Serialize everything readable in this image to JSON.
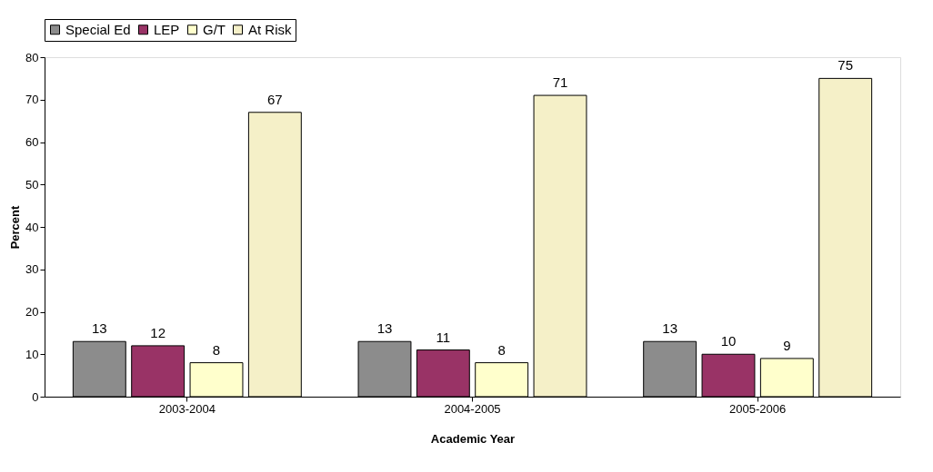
{
  "chart_data": {
    "type": "bar",
    "xlabel": "Academic Year",
    "ylabel": "Percent",
    "categories": [
      "2003-2004",
      "2004-2005",
      "2005-2006"
    ],
    "series": [
      {
        "name": "Special Ed",
        "color": "#8c8c8c",
        "values": [
          13,
          13,
          13
        ]
      },
      {
        "name": "LEP",
        "color": "#993366",
        "values": [
          12,
          11,
          10
        ]
      },
      {
        "name": "G/T",
        "color": "#ffffcc",
        "values": [
          8,
          8,
          9
        ]
      },
      {
        "name": "At Risk",
        "color": "#f5f0c8",
        "values": [
          67,
          71,
          75
        ]
      }
    ],
    "ylim": [
      0,
      80
    ],
    "yticks": [
      0,
      10,
      20,
      30,
      40,
      50,
      60,
      70,
      80
    ],
    "data_labels": true,
    "grid": false,
    "legend": "top"
  }
}
